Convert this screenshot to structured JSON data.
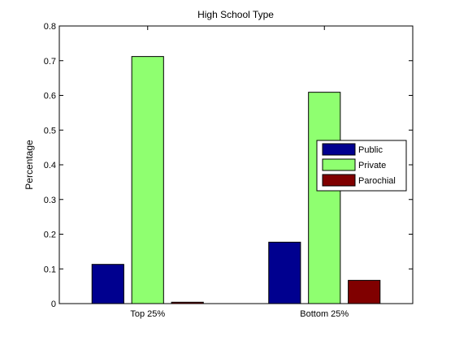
{
  "chart_data": {
    "type": "bar",
    "title": "High School Type",
    "xlabel": "",
    "ylabel": "Percentage",
    "categories": [
      "Top 25%",
      "Bottom 25%"
    ],
    "series": [
      {
        "name": "Public",
        "values": [
          0.113,
          0.177
        ],
        "color": "#00008f"
      },
      {
        "name": "Private",
        "values": [
          0.712,
          0.609
        ],
        "color": "#8fff70"
      },
      {
        "name": "Parochial",
        "values": [
          0.004,
          0.067
        ],
        "color": "#800000"
      }
    ],
    "ylim": [
      0,
      0.8
    ],
    "yticks": [
      "0",
      "0.1",
      "0.2",
      "0.3",
      "0.4",
      "0.5",
      "0.6",
      "0.7",
      "0.8"
    ],
    "grid": false,
    "legend_position": "right"
  }
}
